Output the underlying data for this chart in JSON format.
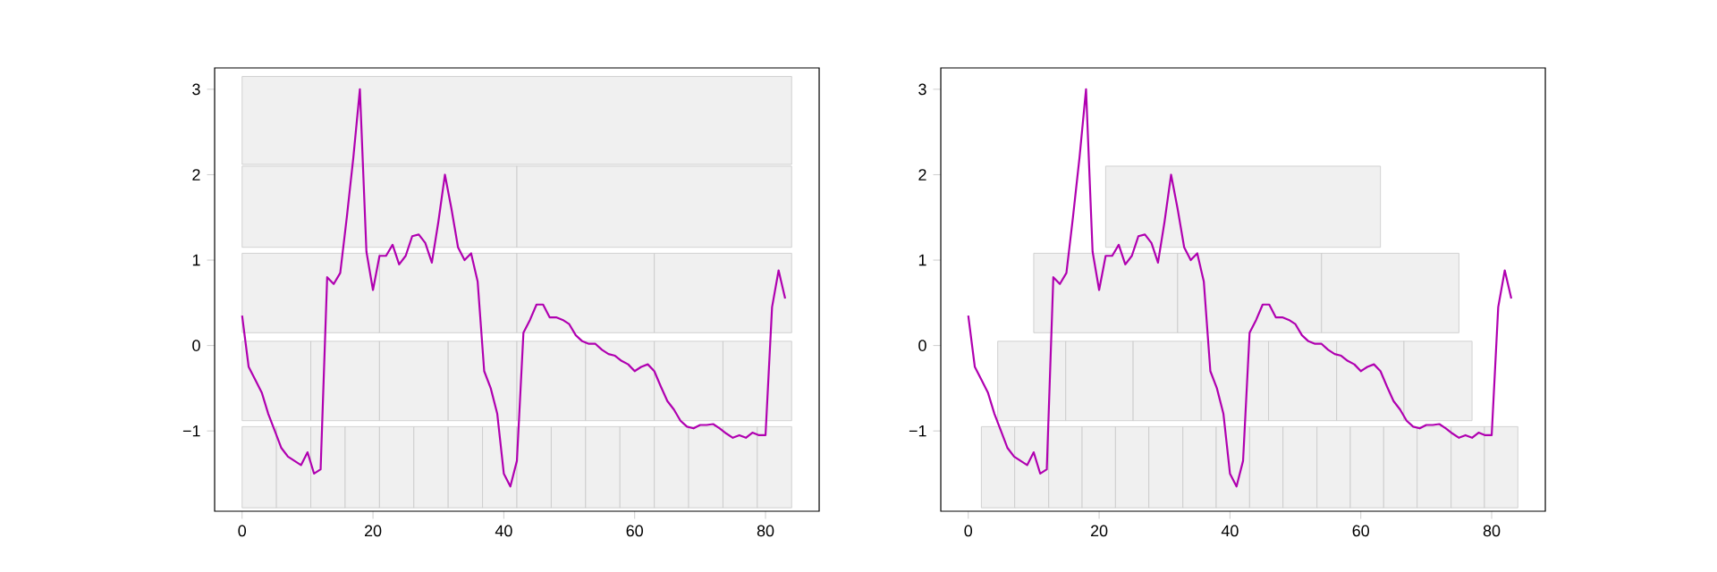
{
  "chart_data": [
    {
      "type": "line",
      "xlim": [
        -4.2,
        88.2
      ],
      "ylim": [
        -1.94,
        3.25
      ],
      "xticks": [
        0,
        20,
        40,
        60,
        80
      ],
      "yticks": [
        {
          "value": -1,
          "label": "−1"
        },
        0,
        1,
        2,
        3
      ],
      "series": [
        {
          "type": "histogram",
          "color": "#f0f0f0",
          "bins": [
            0,
            5.25,
            10.5,
            15.75,
            21,
            26.25,
            31.5,
            36.75,
            42,
            47.25,
            52.5,
            57.75,
            63,
            68.25,
            73.5,
            78.75,
            84
          ],
          "base": [
            -1.9,
            -1.9,
            -1.9,
            -1.9,
            -1.9,
            -1.9,
            -1.9,
            -1.9,
            -1.9,
            -1.9,
            -1.9,
            -1.9,
            -1.9,
            -1.9,
            -1.9,
            -1.9
          ],
          "values": [
            0.95,
            0.95,
            0.95,
            0.95,
            0.95,
            0.95,
            0.95,
            0.95,
            0.95,
            0.95,
            0.95,
            0.95,
            0.95,
            0.95,
            0.95,
            0.95
          ]
        },
        {
          "type": "histogram",
          "color": "#f0f0f0",
          "bins": [
            0,
            10.5,
            21,
            31.5,
            42,
            52.5,
            63,
            73.5,
            84
          ],
          "base": [
            -0.88,
            -0.88,
            -0.88,
            -0.88,
            -0.88,
            -0.88,
            -0.88,
            -0.88
          ],
          "values": [
            0.93,
            0.93,
            0.93,
            0.93,
            0.93,
            0.93,
            0.93,
            0.93
          ]
        },
        {
          "type": "histogram",
          "color": "#f0f0f0",
          "bins": [
            0,
            21,
            42,
            63,
            84
          ],
          "base": [
            0.15,
            0.15,
            0.15,
            0.15
          ],
          "values": [
            0.93,
            0.93,
            0.93,
            0.93
          ]
        },
        {
          "type": "histogram",
          "color": "#f0f0f0",
          "bins": [
            0,
            42,
            84
          ],
          "base": [
            1.15,
            1.15
          ],
          "values": [
            0.95,
            0.95
          ]
        },
        {
          "type": "histogram",
          "color": "#f0f0f0",
          "bins": [
            0,
            84
          ],
          "base": [
            2.12
          ],
          "values": [
            1.03
          ]
        },
        {
          "type": "line",
          "color": "#b000b0",
          "x": [
            0,
            1,
            2,
            3,
            4,
            5,
            6,
            7,
            8,
            9,
            10,
            11,
            12,
            13,
            14,
            15,
            16,
            17,
            18,
            19,
            20,
            21,
            22,
            23,
            24,
            25,
            26,
            27,
            28,
            29,
            30,
            31,
            32,
            33,
            34,
            35,
            36,
            37,
            38,
            39,
            40,
            41,
            42,
            43,
            44,
            45,
            46,
            47,
            48,
            49,
            50,
            51,
            52,
            53,
            54,
            55,
            56,
            57,
            58,
            59,
            60,
            61,
            62,
            63,
            64,
            65,
            66,
            67,
            68,
            69,
            70,
            71,
            72,
            73,
            74,
            75,
            76,
            77,
            78,
            79,
            80,
            81,
            82,
            83
          ],
          "values": [
            0.35,
            -0.25,
            -0.4,
            -0.55,
            -0.8,
            -1.0,
            -1.2,
            -1.3,
            -1.35,
            -1.4,
            -1.25,
            -1.5,
            -1.45,
            0.8,
            0.72,
            0.85,
            1.5,
            2.2,
            3.0,
            1.1,
            0.65,
            1.05,
            1.05,
            1.18,
            0.95,
            1.05,
            1.28,
            1.3,
            1.2,
            0.97,
            1.45,
            2.0,
            1.6,
            1.15,
            1.0,
            1.08,
            0.75,
            -0.3,
            -0.5,
            -0.8,
            -1.5,
            -1.65,
            -1.35,
            0.15,
            0.3,
            0.48,
            0.48,
            0.33,
            0.33,
            0.3,
            0.25,
            0.12,
            0.05,
            0.02,
            0.02,
            -0.05,
            -0.1,
            -0.12,
            -0.18,
            -0.22,
            -0.3,
            -0.25,
            -0.22,
            -0.3,
            -0.48,
            -0.65,
            -0.75,
            -0.88,
            -0.95,
            -0.97,
            -0.93,
            -0.93,
            -0.92,
            -0.97,
            -1.03,
            -1.08,
            -1.05,
            -1.08,
            -1.02,
            -1.05,
            -1.05,
            0.45,
            0.88,
            0.55
          ]
        }
      ]
    },
    {
      "type": "line",
      "xlim": [
        -4.2,
        88.2
      ],
      "ylim": [
        -1.94,
        3.25
      ],
      "xticks": [
        0,
        20,
        40,
        60,
        80
      ],
      "yticks": [
        {
          "value": -1,
          "label": "−1"
        },
        0,
        1,
        2,
        3
      ],
      "series": [
        {
          "type": "histogram",
          "color": "#f0f0f0",
          "bins": [
            2,
            7.1,
            12.3,
            17.4,
            22.5,
            27.6,
            32.8,
            37.9,
            43,
            48.1,
            53.3,
            58.4,
            63.5,
            68.6,
            73.8,
            78.9,
            84
          ],
          "base": [
            -1.9,
            -1.9,
            -1.9,
            -1.9,
            -1.9,
            -1.9,
            -1.9,
            -1.9,
            -1.9,
            -1.9,
            -1.9,
            -1.9,
            -1.9,
            -1.9,
            -1.9,
            -1.9
          ],
          "values": [
            0.95,
            0.95,
            0.95,
            0.95,
            0.95,
            0.95,
            0.95,
            0.95,
            0.95,
            0.95,
            0.95,
            0.95,
            0.95,
            0.95,
            0.95,
            0.95
          ]
        },
        {
          "type": "histogram",
          "color": "#f0f0f0",
          "bins": [
            4.5,
            14.9,
            25.2,
            35.6,
            45.9,
            56.3,
            66.6,
            77
          ],
          "base": [
            -0.88,
            -0.88,
            -0.88,
            -0.88,
            -0.88,
            -0.88,
            -0.88
          ],
          "values": [
            0.93,
            0.93,
            0.93,
            0.93,
            0.93,
            0.93,
            0.93
          ]
        },
        {
          "type": "histogram",
          "color": "#f0f0f0",
          "bins": [
            10,
            32,
            54,
            75
          ],
          "base": [
            0.15,
            0.15,
            0.15
          ],
          "values": [
            0.93,
            0.93,
            0.93
          ]
        },
        {
          "type": "histogram",
          "color": "#f0f0f0",
          "bins": [
            21,
            63
          ],
          "base": [
            1.15
          ],
          "values": [
            0.95
          ]
        },
        {
          "type": "line",
          "color": "#b000b0",
          "x": [
            0,
            1,
            2,
            3,
            4,
            5,
            6,
            7,
            8,
            9,
            10,
            11,
            12,
            13,
            14,
            15,
            16,
            17,
            18,
            19,
            20,
            21,
            22,
            23,
            24,
            25,
            26,
            27,
            28,
            29,
            30,
            31,
            32,
            33,
            34,
            35,
            36,
            37,
            38,
            39,
            40,
            41,
            42,
            43,
            44,
            45,
            46,
            47,
            48,
            49,
            50,
            51,
            52,
            53,
            54,
            55,
            56,
            57,
            58,
            59,
            60,
            61,
            62,
            63,
            64,
            65,
            66,
            67,
            68,
            69,
            70,
            71,
            72,
            73,
            74,
            75,
            76,
            77,
            78,
            79,
            80,
            81,
            82,
            83
          ],
          "values": [
            0.35,
            -0.25,
            -0.4,
            -0.55,
            -0.8,
            -1.0,
            -1.2,
            -1.3,
            -1.35,
            -1.4,
            -1.25,
            -1.5,
            -1.45,
            0.8,
            0.72,
            0.85,
            1.5,
            2.2,
            3.0,
            1.1,
            0.65,
            1.05,
            1.05,
            1.18,
            0.95,
            1.05,
            1.28,
            1.3,
            1.2,
            0.97,
            1.45,
            2.0,
            1.6,
            1.15,
            1.0,
            1.08,
            0.75,
            -0.3,
            -0.5,
            -0.8,
            -1.5,
            -1.65,
            -1.35,
            0.15,
            0.3,
            0.48,
            0.48,
            0.33,
            0.33,
            0.3,
            0.25,
            0.12,
            0.05,
            0.02,
            0.02,
            -0.05,
            -0.1,
            -0.12,
            -0.18,
            -0.22,
            -0.3,
            -0.25,
            -0.22,
            -0.3,
            -0.48,
            -0.65,
            -0.75,
            -0.88,
            -0.95,
            -0.97,
            -0.93,
            -0.93,
            -0.92,
            -0.97,
            -1.03,
            -1.08,
            -1.05,
            -1.08,
            -1.02,
            -1.05,
            -1.05,
            0.45,
            0.88,
            0.55
          ]
        }
      ]
    }
  ]
}
